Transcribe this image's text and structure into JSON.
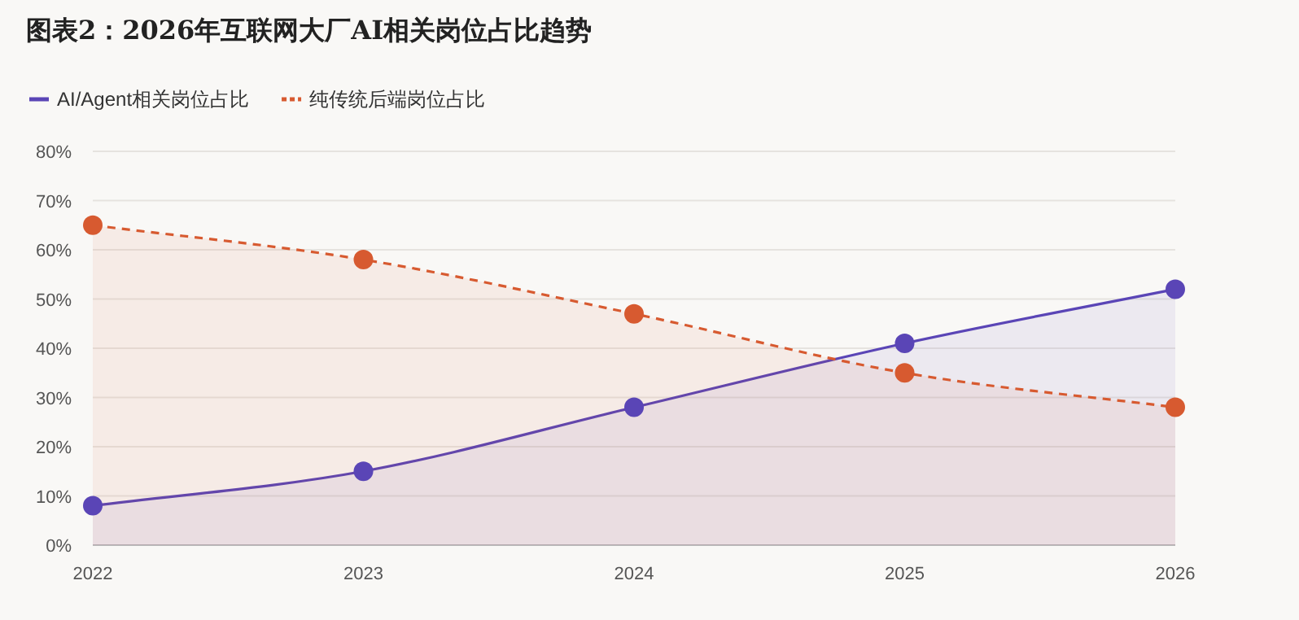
{
  "chart_data": {
    "type": "area",
    "title": "图表2：2026年互联网大厂AI相关岗位占比趋势",
    "categories": [
      "2022",
      "2023",
      "2024",
      "2025",
      "2026"
    ],
    "series": [
      {
        "name": "AI/Agent相关岗位占比",
        "color": "#5a45b6",
        "values": [
          8,
          15,
          28,
          41,
          52
        ],
        "line_style": "solid"
      },
      {
        "name": "纯传统后端岗位占比",
        "color": "#d75a30",
        "values": [
          65,
          58,
          47,
          35,
          28
        ],
        "line_style": "dashed"
      }
    ],
    "ylim": [
      0,
      80
    ],
    "yticks": [
      {
        "value": 0,
        "label": "0%"
      },
      {
        "value": 10,
        "label": "10%"
      },
      {
        "value": 20,
        "label": "20%"
      },
      {
        "value": 30,
        "label": "30%"
      },
      {
        "value": 40,
        "label": "40%"
      },
      {
        "value": 50,
        "label": "50%"
      },
      {
        "value": 60,
        "label": "60%"
      },
      {
        "value": 70,
        "label": "70%"
      },
      {
        "value": 80,
        "label": "80%"
      }
    ],
    "grid": "y",
    "legend": "top left",
    "marker": "circle"
  }
}
